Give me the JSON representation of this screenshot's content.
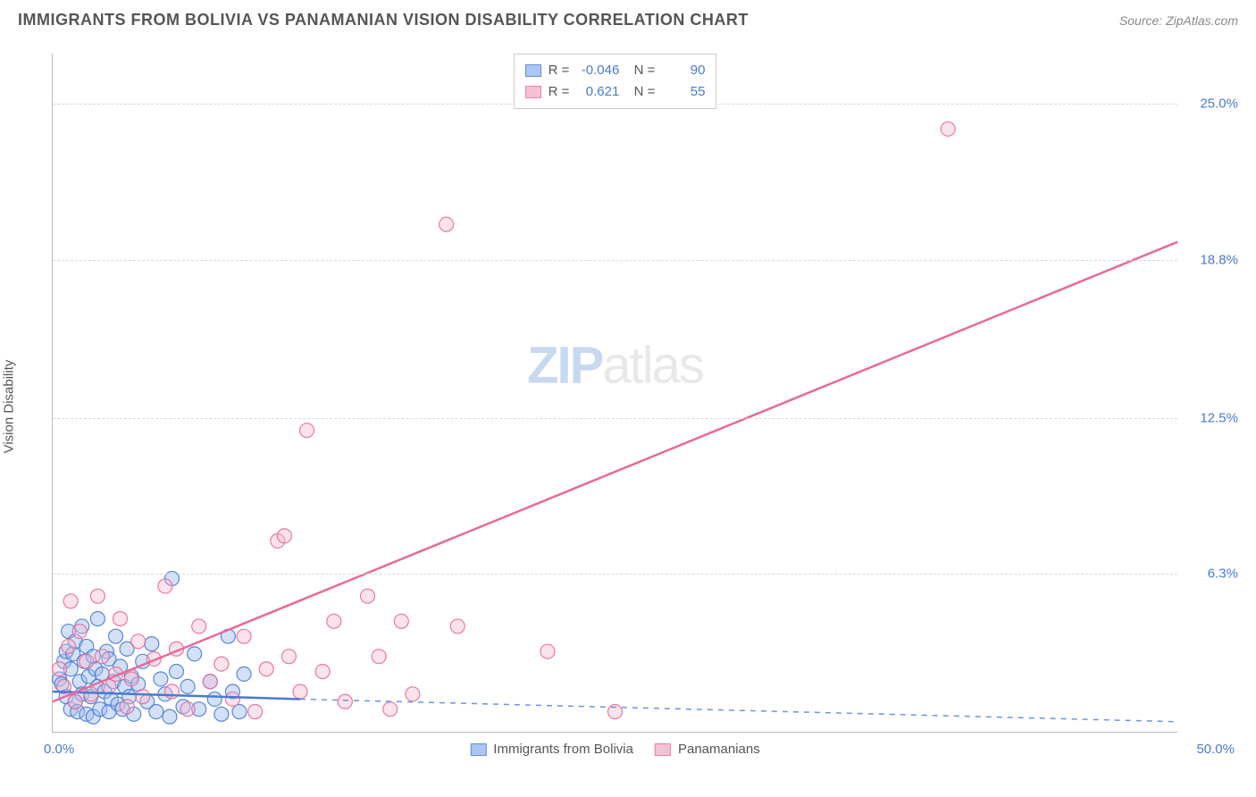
{
  "title": "IMMIGRANTS FROM BOLIVIA VS PANAMANIAN VISION DISABILITY CORRELATION CHART",
  "source_label": "Source: ZipAtlas.com",
  "ylabel": "Vision Disability",
  "watermark_zip": "ZIP",
  "watermark_atlas": "atlas",
  "chart": {
    "type": "scatter",
    "xlim": [
      0,
      50
    ],
    "ylim": [
      0,
      27
    ],
    "x_tick_left": "0.0%",
    "x_tick_right": "50.0%",
    "y_ticks": [
      {
        "v": 6.3,
        "label": "6.3%"
      },
      {
        "v": 12.5,
        "label": "12.5%"
      },
      {
        "v": 18.8,
        "label": "18.8%"
      },
      {
        "v": 25.0,
        "label": "25.0%"
      }
    ],
    "grid_color": "#d8d8d8",
    "background": "#ffffff",
    "series": [
      {
        "name": "Immigrants from Bolivia",
        "label": "Immigrants from Bolivia",
        "fill": "#9dbdf0",
        "stroke": "#4a7bd0",
        "fill_opacity": 0.45,
        "marker_r": 8,
        "R": "-0.046",
        "N": "90",
        "trend": {
          "x1": 0,
          "y1": 1.6,
          "x2": 11,
          "y2": 1.3,
          "dash_x2": 50,
          "dash_y2": 0.4,
          "width": 2.5
        },
        "points": [
          [
            0.3,
            2.1
          ],
          [
            0.4,
            1.9
          ],
          [
            0.5,
            2.8
          ],
          [
            0.6,
            3.2
          ],
          [
            0.6,
            1.4
          ],
          [
            0.7,
            4.0
          ],
          [
            0.8,
            2.5
          ],
          [
            0.8,
            0.9
          ],
          [
            0.9,
            3.1
          ],
          [
            1.0,
            1.2
          ],
          [
            1.0,
            3.6
          ],
          [
            1.1,
            0.8
          ],
          [
            1.2,
            2.0
          ],
          [
            1.3,
            1.5
          ],
          [
            1.3,
            4.2
          ],
          [
            1.4,
            2.8
          ],
          [
            1.5,
            3.4
          ],
          [
            1.5,
            0.7
          ],
          [
            1.6,
            2.2
          ],
          [
            1.7,
            1.4
          ],
          [
            1.8,
            3.0
          ],
          [
            1.8,
            0.6
          ],
          [
            1.9,
            2.5
          ],
          [
            2.0,
            1.8
          ],
          [
            2.0,
            4.5
          ],
          [
            2.1,
            0.9
          ],
          [
            2.2,
            2.3
          ],
          [
            2.3,
            1.6
          ],
          [
            2.4,
            3.2
          ],
          [
            2.5,
            0.8
          ],
          [
            2.5,
            2.9
          ],
          [
            2.6,
            1.3
          ],
          [
            2.7,
            2.0
          ],
          [
            2.8,
            3.8
          ],
          [
            2.9,
            1.1
          ],
          [
            3.0,
            2.6
          ],
          [
            3.1,
            0.9
          ],
          [
            3.2,
            1.8
          ],
          [
            3.3,
            3.3
          ],
          [
            3.4,
            1.4
          ],
          [
            3.5,
            2.2
          ],
          [
            3.6,
            0.7
          ],
          [
            3.8,
            1.9
          ],
          [
            4.0,
            2.8
          ],
          [
            4.2,
            1.2
          ],
          [
            4.4,
            3.5
          ],
          [
            4.6,
            0.8
          ],
          [
            4.8,
            2.1
          ],
          [
            5.0,
            1.5
          ],
          [
            5.2,
            0.6
          ],
          [
            5.3,
            6.1
          ],
          [
            5.5,
            2.4
          ],
          [
            5.8,
            1.0
          ],
          [
            6.0,
            1.8
          ],
          [
            6.3,
            3.1
          ],
          [
            6.5,
            0.9
          ],
          [
            7.0,
            2.0
          ],
          [
            7.2,
            1.3
          ],
          [
            7.5,
            0.7
          ],
          [
            7.8,
            3.8
          ],
          [
            8.0,
            1.6
          ],
          [
            8.3,
            0.8
          ],
          [
            8.5,
            2.3
          ]
        ]
      },
      {
        "name": "Panamanians",
        "label": "Panamanians",
        "fill": "#f5b8cc",
        "stroke": "#e86a9a",
        "fill_opacity": 0.4,
        "marker_r": 8,
        "R": "0.621",
        "N": "55",
        "trend": {
          "x1": 0,
          "y1": 1.2,
          "x2": 50,
          "y2": 19.5,
          "width": 2.5
        },
        "points": [
          [
            0.3,
            2.5
          ],
          [
            0.5,
            1.8
          ],
          [
            0.7,
            3.4
          ],
          [
            0.8,
            5.2
          ],
          [
            1.0,
            1.2
          ],
          [
            1.2,
            4.0
          ],
          [
            1.5,
            2.8
          ],
          [
            1.7,
            1.5
          ],
          [
            2.0,
            5.4
          ],
          [
            2.2,
            3.0
          ],
          [
            2.5,
            1.8
          ],
          [
            2.8,
            2.3
          ],
          [
            3.0,
            4.5
          ],
          [
            3.3,
            1.0
          ],
          [
            3.5,
            2.1
          ],
          [
            3.8,
            3.6
          ],
          [
            4.0,
            1.4
          ],
          [
            4.5,
            2.9
          ],
          [
            5.0,
            5.8
          ],
          [
            5.3,
            1.6
          ],
          [
            5.5,
            3.3
          ],
          [
            6.0,
            0.9
          ],
          [
            6.5,
            4.2
          ],
          [
            7.0,
            2.0
          ],
          [
            7.5,
            2.7
          ],
          [
            8.0,
            1.3
          ],
          [
            8.5,
            3.8
          ],
          [
            9.0,
            0.8
          ],
          [
            9.5,
            2.5
          ],
          [
            10.0,
            7.6
          ],
          [
            10.3,
            7.8
          ],
          [
            10.5,
            3.0
          ],
          [
            11.0,
            1.6
          ],
          [
            11.3,
            12.0
          ],
          [
            12.0,
            2.4
          ],
          [
            12.5,
            4.4
          ],
          [
            13.0,
            1.2
          ],
          [
            14.0,
            5.4
          ],
          [
            14.5,
            3.0
          ],
          [
            15.0,
            0.9
          ],
          [
            15.5,
            4.4
          ],
          [
            16.0,
            1.5
          ],
          [
            17.5,
            20.2
          ],
          [
            18.0,
            4.2
          ],
          [
            22.0,
            3.2
          ],
          [
            25.0,
            0.8
          ],
          [
            39.8,
            24.0
          ]
        ]
      }
    ]
  }
}
